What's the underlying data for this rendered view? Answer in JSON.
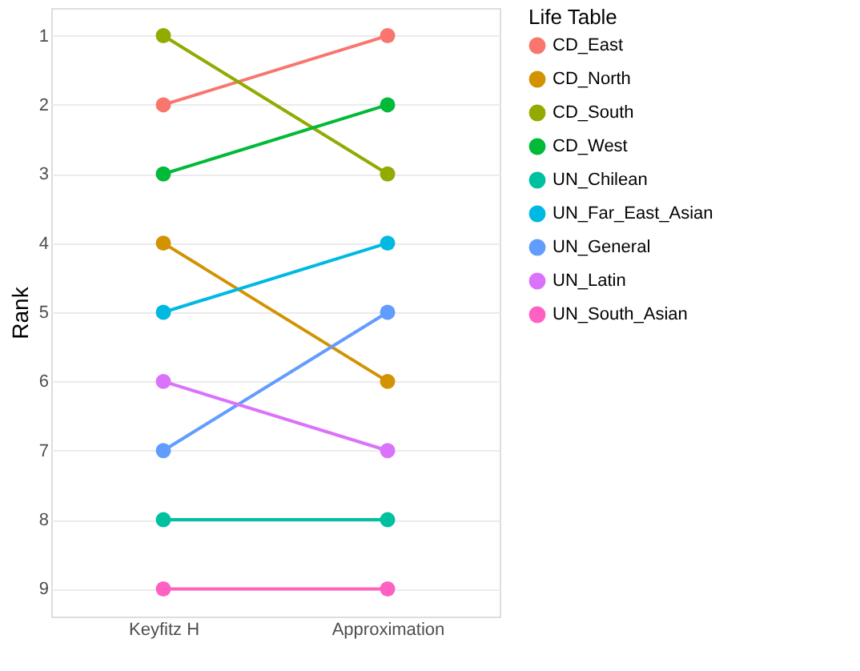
{
  "chart_data": {
    "type": "line",
    "categories": [
      "Keyfitz H",
      "Approximation"
    ],
    "ylabel": "Rank",
    "legend_title": "Life Table",
    "ylim": [
      9.4,
      0.6
    ],
    "yticks": [
      1,
      2,
      3,
      4,
      5,
      6,
      7,
      8,
      9
    ],
    "grid": "y",
    "legend": "right",
    "marker": "circle",
    "line_style": "solid",
    "series": [
      {
        "name": "CD_East",
        "color": "#f8766d",
        "values": [
          2,
          1
        ]
      },
      {
        "name": "CD_North",
        "color": "#d39200",
        "values": [
          4,
          6
        ]
      },
      {
        "name": "CD_South",
        "color": "#93aa00",
        "values": [
          1,
          3
        ]
      },
      {
        "name": "CD_West",
        "color": "#00ba38",
        "values": [
          3,
          2
        ]
      },
      {
        "name": "UN_Chilean",
        "color": "#00c19f",
        "values": [
          8,
          8
        ]
      },
      {
        "name": "UN_Far_East_Asian",
        "color": "#00b9e3",
        "values": [
          5,
          4
        ]
      },
      {
        "name": "UN_General",
        "color": "#619cff",
        "values": [
          7,
          5
        ]
      },
      {
        "name": "UN_Latin",
        "color": "#db72fb",
        "values": [
          6,
          7
        ]
      },
      {
        "name": "UN_South_Asian",
        "color": "#ff61c3",
        "values": [
          9,
          9
        ]
      }
    ]
  }
}
